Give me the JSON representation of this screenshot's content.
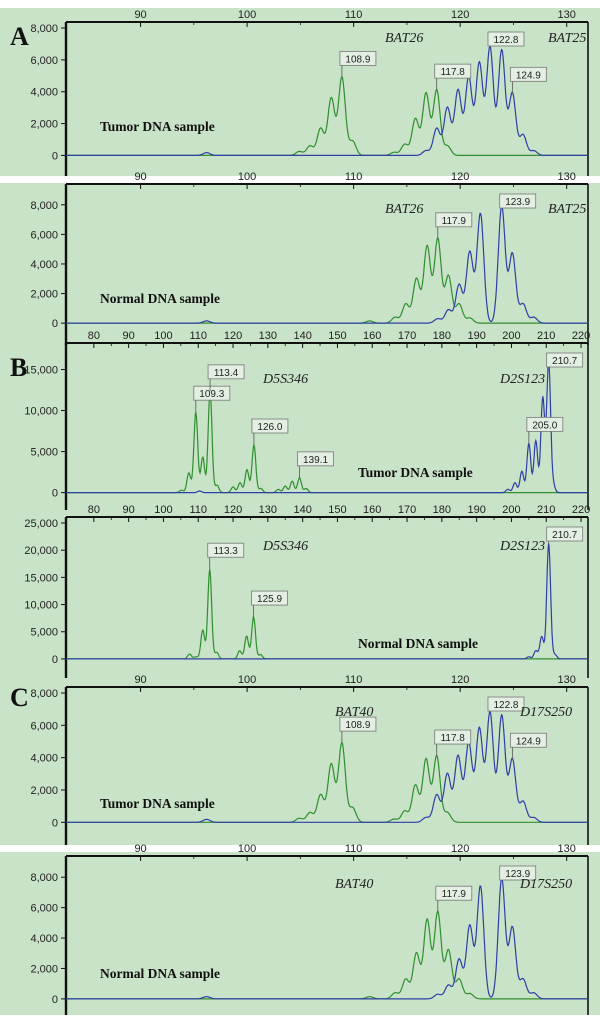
{
  "colors": {
    "background": "#c8e3c7",
    "green_trace": "#2f8f2f",
    "blue_trace": "#2e3fa6",
    "axis": "#111111"
  },
  "panel_labels": [
    "A",
    "B",
    "C"
  ],
  "chart_data": [
    {
      "type": "line",
      "panel": "A",
      "sample": "Tumor DNA sample",
      "loci": [
        "BAT26",
        "BAT25"
      ],
      "xlim": [
        83,
        132
      ],
      "xticks": [
        90,
        100,
        110,
        120,
        130
      ],
      "xtick_labels": [
        "90",
        "100",
        "110",
        "120",
        "130"
      ],
      "ylim": [
        -600,
        8000
      ],
      "yticks": [
        0,
        2000,
        4000,
        6000,
        8000
      ],
      "ytick_labels": [
        "0",
        "2,000",
        "4,000",
        "6,000",
        "8,000"
      ],
      "series": [
        {
          "name": "green",
          "peaks": [
            [
              104.9,
              250
            ],
            [
              105.9,
              600
            ],
            [
              106.9,
              1700
            ],
            [
              107.9,
              3600
            ],
            [
              108.9,
              4900
            ],
            [
              109.9,
              900
            ],
            [
              113.8,
              200
            ],
            [
              114.8,
              700
            ],
            [
              115.8,
              2300
            ],
            [
              116.8,
              3900
            ],
            [
              117.8,
              4100
            ],
            [
              118.8,
              600
            ]
          ]
        },
        {
          "name": "blue",
          "peaks": [
            [
              96.2,
              180
            ],
            [
              116.8,
              300
            ],
            [
              117.8,
              1700
            ],
            [
              118.8,
              3000
            ],
            [
              119.8,
              4100
            ],
            [
              120.8,
              4900
            ],
            [
              121.8,
              5800
            ],
            [
              122.8,
              6800
            ],
            [
              123.9,
              6600
            ],
            [
              124.9,
              3900
            ],
            [
              125.9,
              1300
            ],
            [
              126.9,
              300
            ]
          ]
        }
      ],
      "annotations": [
        {
          "x": 108.9,
          "label": "108.9"
        },
        {
          "x": 117.8,
          "label": "117.8"
        },
        {
          "x": 122.8,
          "label": "122.8"
        },
        {
          "x": 124.9,
          "label": "124.9"
        }
      ]
    },
    {
      "type": "line",
      "panel": "A",
      "sample": "Normal DNA sample",
      "loci": [
        "BAT26",
        "BAT25"
      ],
      "xlim": [
        83,
        132
      ],
      "xticks": [
        90,
        100,
        110,
        120,
        130
      ],
      "xtick_labels": [
        "90",
        "100",
        "110",
        "120",
        "130"
      ],
      "ylim": [
        -600,
        9000
      ],
      "yticks": [
        0,
        2000,
        4000,
        6000,
        8000
      ],
      "ytick_labels": [
        "0",
        "2,000",
        "4,000",
        "6,000",
        "8,000"
      ],
      "series": [
        {
          "name": "green",
          "peaks": [
            [
              111.5,
              150
            ],
            [
              113.9,
              400
            ],
            [
              114.9,
              1300
            ],
            [
              115.9,
              3000
            ],
            [
              116.9,
              5200
            ],
            [
              117.9,
              5700
            ],
            [
              118.9,
              3200
            ],
            [
              119.9,
              1300
            ],
            [
              120.9,
              350
            ]
          ]
        },
        {
          "name": "blue",
          "peaks": [
            [
              96.2,
              150
            ],
            [
              117.9,
              300
            ],
            [
              118.9,
              900
            ],
            [
              119.9,
              2600
            ],
            [
              120.9,
              4800
            ],
            [
              121.9,
              7400
            ],
            [
              123.9,
              7900
            ],
            [
              124.9,
              4700
            ],
            [
              125.9,
              1300
            ],
            [
              126.9,
              400
            ]
          ]
        }
      ],
      "annotations": [
        {
          "x": 117.9,
          "label": "117.9"
        },
        {
          "x": 123.9,
          "label": "123.9"
        }
      ]
    },
    {
      "type": "line",
      "panel": "B",
      "sample": "Tumor DNA sample",
      "loci": [
        "D5S346",
        "D2S123"
      ],
      "xlim": [
        72,
        222
      ],
      "xticks": [
        80,
        90,
        100,
        110,
        120,
        130,
        140,
        150,
        160,
        170,
        180,
        190,
        200,
        210,
        220
      ],
      "xtick_labels": [
        "80",
        "90",
        "100",
        "110",
        "120",
        "130",
        "140",
        "150",
        "160",
        "170",
        "180",
        "190",
        "200",
        "210",
        "220"
      ],
      "ylim": [
        -900,
        17500
      ],
      "yticks": [
        0,
        5000,
        10000,
        15000
      ],
      "ytick_labels": [
        "0",
        "5,000",
        "10,000",
        "15,000"
      ],
      "series": [
        {
          "name": "green",
          "peaks": [
            [
              105.2,
              300
            ],
            [
              107.3,
              2400
            ],
            [
              109.3,
              9800
            ],
            [
              111.3,
              4300
            ],
            [
              113.4,
              12400
            ],
            [
              115.4,
              900
            ],
            [
              120,
              700
            ],
            [
              122,
              1200
            ],
            [
              124,
              2800
            ],
            [
              126.0,
              5800
            ],
            [
              128,
              500
            ],
            [
              133,
              400
            ],
            [
              135,
              800
            ],
            [
              137,
              1400
            ],
            [
              139.1,
              1800
            ],
            [
              141,
              500
            ]
          ]
        },
        {
          "name": "blue",
          "peaks": [
            [
              110.4,
              200
            ],
            [
              199,
              400
            ],
            [
              201,
              1200
            ],
            [
              203,
              2600
            ],
            [
              205.0,
              6000
            ],
            [
              207,
              6300
            ],
            [
              209,
              11600
            ],
            [
              210.7,
              16000
            ],
            [
              212,
              900
            ]
          ]
        }
      ],
      "annotations": [
        {
          "x": 109.3,
          "label": "109.3"
        },
        {
          "x": 113.4,
          "label": "113.4"
        },
        {
          "x": 126.0,
          "label": "126.0"
        },
        {
          "x": 139.1,
          "label": "139.1"
        },
        {
          "x": 205.0,
          "label": "205.0"
        },
        {
          "x": 210.7,
          "label": "210.7"
        }
      ]
    },
    {
      "type": "line",
      "panel": "B",
      "sample": "Normal DNA sample",
      "loci": [
        "D5S346",
        "D2S123"
      ],
      "xlim": [
        72,
        222
      ],
      "xticks": [
        80,
        90,
        100,
        110,
        120,
        130,
        140,
        150,
        160,
        170,
        180,
        190,
        200,
        210,
        220
      ],
      "xtick_labels": [
        "80",
        "90",
        "100",
        "110",
        "120",
        "130",
        "140",
        "150",
        "160",
        "170",
        "180",
        "190",
        "200",
        "210",
        "220"
      ],
      "ylim": [
        -1300,
        25000
      ],
      "yticks": [
        0,
        5000,
        10000,
        15000,
        20000,
        25000
      ],
      "ytick_labels": [
        "0",
        "5,000",
        "10,000",
        "15,000",
        "20,000",
        "25,000"
      ],
      "series": [
        {
          "name": "green",
          "peaks": [
            [
              107.5,
              900
            ],
            [
              109.3,
              400
            ],
            [
              111.3,
              5300
            ],
            [
              113.3,
              16500
            ],
            [
              115.3,
              1200
            ],
            [
              121.9,
              1500
            ],
            [
              123.9,
              4200
            ],
            [
              125.9,
              7700
            ],
            [
              127.9,
              800
            ]
          ]
        },
        {
          "name": "blue",
          "peaks": [
            [
              205,
              400
            ],
            [
              207,
              1500
            ],
            [
              208.7,
              4100
            ],
            [
              210.7,
              21300
            ],
            [
              212.5,
              800
            ]
          ]
        }
      ],
      "annotations": [
        {
          "x": 113.3,
          "label": "113.3"
        },
        {
          "x": 125.9,
          "label": "125.9"
        },
        {
          "x": 210.7,
          "label": "210.7"
        }
      ]
    },
    {
      "type": "line",
      "panel": "C",
      "sample": "Tumor DNA sample",
      "loci": [
        "BAT40",
        "D17S250"
      ],
      "xlim": [
        83,
        132
      ],
      "xticks": [
        90,
        100,
        110,
        120,
        130
      ],
      "xtick_labels": [
        "90",
        "100",
        "110",
        "120",
        "130"
      ],
      "ylim": [
        -600,
        8000
      ],
      "yticks": [
        0,
        2000,
        4000,
        6000,
        8000
      ],
      "ytick_labels": [
        "0",
        "2,000",
        "4,000",
        "6,000",
        "8,000"
      ],
      "series": [
        {
          "name": "green",
          "peaks": [
            [
              104.9,
              250
            ],
            [
              105.9,
              600
            ],
            [
              106.9,
              1700
            ],
            [
              107.9,
              3600
            ],
            [
              108.9,
              4900
            ],
            [
              109.9,
              900
            ],
            [
              113.8,
              200
            ],
            [
              114.8,
              700
            ],
            [
              115.8,
              2300
            ],
            [
              116.8,
              3900
            ],
            [
              117.8,
              4100
            ],
            [
              118.8,
              600
            ]
          ]
        },
        {
          "name": "blue",
          "peaks": [
            [
              96.2,
              180
            ],
            [
              116.8,
              300
            ],
            [
              117.8,
              1700
            ],
            [
              118.8,
              3000
            ],
            [
              119.8,
              4100
            ],
            [
              120.8,
              4900
            ],
            [
              121.8,
              5800
            ],
            [
              122.8,
              6800
            ],
            [
              123.9,
              6600
            ],
            [
              124.9,
              3900
            ],
            [
              125.9,
              1300
            ],
            [
              126.9,
              300
            ]
          ]
        }
      ],
      "annotations": [
        {
          "x": 108.9,
          "label": "108.9"
        },
        {
          "x": 117.8,
          "label": "117.8"
        },
        {
          "x": 122.8,
          "label": "122.8"
        },
        {
          "x": 124.9,
          "label": "124.9"
        }
      ]
    },
    {
      "type": "line",
      "panel": "C",
      "sample": "Normal DNA sample",
      "loci": [
        "BAT40",
        "D17S250"
      ],
      "xlim": [
        83,
        132
      ],
      "xticks": [
        90,
        100,
        110,
        120,
        130
      ],
      "xtick_labels": [
        "90",
        "100",
        "110",
        "120",
        "130"
      ],
      "ylim": [
        -600,
        9000
      ],
      "yticks": [
        0,
        2000,
        4000,
        6000,
        8000
      ],
      "ytick_labels": [
        "0",
        "2,000",
        "4,000",
        "6,000",
        "8,000"
      ],
      "series": [
        {
          "name": "green",
          "peaks": [
            [
              111.5,
              150
            ],
            [
              113.9,
              400
            ],
            [
              114.9,
              1300
            ],
            [
              115.9,
              3000
            ],
            [
              116.9,
              5200
            ],
            [
              117.9,
              5700
            ],
            [
              118.9,
              3200
            ],
            [
              119.9,
              1300
            ],
            [
              120.9,
              350
            ]
          ]
        },
        {
          "name": "blue",
          "peaks": [
            [
              96.2,
              150
            ],
            [
              117.9,
              300
            ],
            [
              118.9,
              900
            ],
            [
              119.9,
              2600
            ],
            [
              120.9,
              4800
            ],
            [
              121.9,
              7400
            ],
            [
              123.9,
              7900
            ],
            [
              124.9,
              4700
            ],
            [
              125.9,
              1300
            ],
            [
              126.9,
              400
            ]
          ]
        }
      ],
      "annotations": [
        {
          "x": 117.9,
          "label": "117.9"
        },
        {
          "x": 123.9,
          "label": "123.9"
        }
      ]
    }
  ]
}
